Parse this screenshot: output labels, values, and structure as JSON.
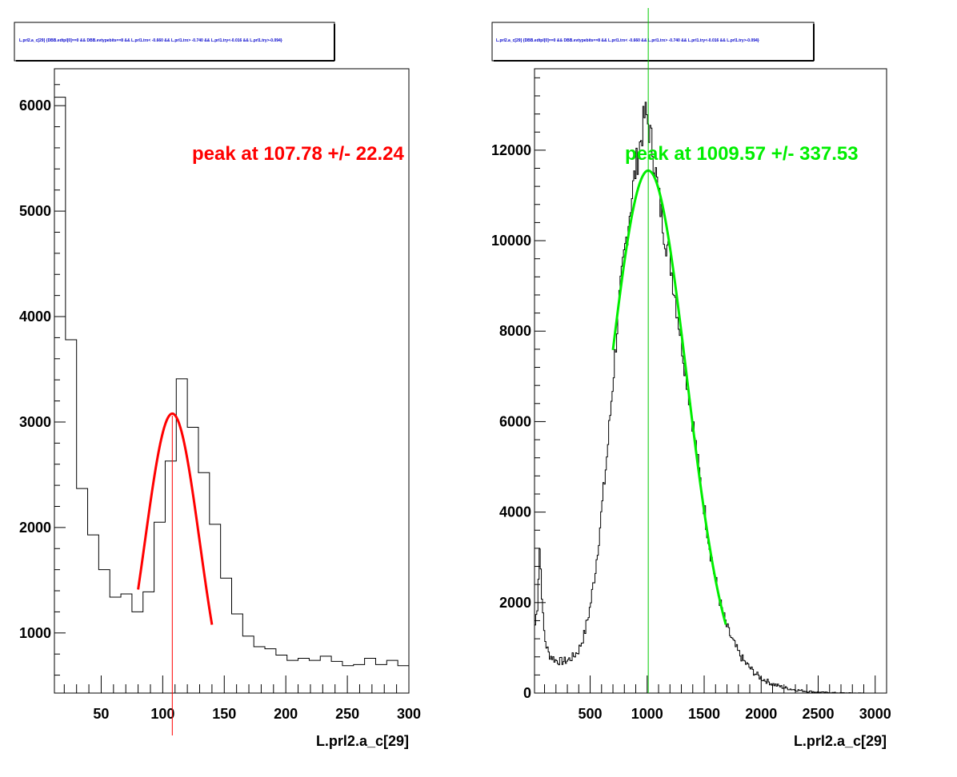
{
  "chart_data": [
    {
      "type": "histogram",
      "title": "L.prl2.a_c[29] {DBB.edtpl[0]==0 && DBB.evtypebits==8 &&  L.prl1.trx< -0.660 && L.prl1.trx> -0.740 && L.prl1.try<-0.016 && L.prl1.try>-0.094}",
      "xlabel": "L.prl2.a_c[29]",
      "ylabel": "",
      "xlim": [
        12,
        300
      ],
      "ylim": [
        430,
        6350
      ],
      "x_ticks": [
        50,
        100,
        150,
        200,
        250,
        300
      ],
      "y_ticks": [
        1000,
        2000,
        3000,
        4000,
        5000,
        6000
      ],
      "grid": false,
      "bin_edges": [
        12,
        21,
        30,
        39,
        48,
        57,
        66,
        75,
        84,
        93,
        102,
        111,
        120,
        129,
        138,
        147,
        156,
        165,
        174,
        183,
        192,
        201,
        210,
        219,
        228,
        237,
        246,
        255,
        264,
        273,
        282,
        291,
        300
      ],
      "counts": [
        6080,
        3780,
        2370,
        1930,
        1600,
        1340,
        1370,
        1200,
        1390,
        2050,
        2630,
        3410,
        2950,
        2520,
        2030,
        1520,
        1180,
        970,
        870,
        850,
        790,
        740,
        760,
        740,
        780,
        730,
        690,
        700,
        760,
        700,
        740,
        690
      ],
      "series": [
        {
          "name": "histogram",
          "color": "#000000"
        },
        {
          "name": "gaussian-fit",
          "color": "#ff0000",
          "fit_range": [
            80,
            140
          ],
          "amplitude": 3080,
          "mean": 107.78,
          "sigma": 22.24
        }
      ],
      "peak_marker": {
        "x": 107.78,
        "color": "#ff0000"
      },
      "annotation": {
        "text": "peak at 107.78 +/- 22.24",
        "color": "#ff0000"
      }
    },
    {
      "type": "histogram",
      "title": "L.prl2.a_c[29] {DBB.edtpl[0]==0 && DBB.evtypebits==8 &&  L.prl1.trx< -0.660 && L.prl1.trx> -0.740 && L.prl1.try<-0.016 && L.prl1.try>-0.094}",
      "xlabel": "L.prl2.a_c[29]",
      "ylabel": "",
      "xlim": [
        12,
        3100
      ],
      "ylim": [
        0,
        13800
      ],
      "x_ticks": [
        500,
        1000,
        1500,
        2000,
        2500,
        3000
      ],
      "y_ticks": [
        0,
        2000,
        4000,
        6000,
        8000,
        10000,
        12000
      ],
      "grid": false,
      "points": [
        [
          12,
          1400
        ],
        [
          40,
          2000
        ],
        [
          55,
          3300
        ],
        [
          70,
          2600
        ],
        [
          90,
          1500
        ],
        [
          110,
          1100
        ],
        [
          140,
          850
        ],
        [
          200,
          720
        ],
        [
          250,
          700
        ],
        [
          300,
          720
        ],
        [
          350,
          800
        ],
        [
          400,
          950
        ],
        [
          450,
          1300
        ],
        [
          500,
          1900
        ],
        [
          550,
          2800
        ],
        [
          600,
          4000
        ],
        [
          650,
          5300
        ],
        [
          700,
          6900
        ],
        [
          750,
          8500
        ],
        [
          800,
          9700
        ],
        [
          850,
          10700
        ],
        [
          900,
          11600
        ],
        [
          950,
          12300
        ],
        [
          980,
          12800
        ],
        [
          1000,
          12700
        ],
        [
          1050,
          12000
        ],
        [
          1100,
          11000
        ],
        [
          1150,
          10200
        ],
        [
          1200,
          9600
        ],
        [
          1250,
          8700
        ],
        [
          1300,
          7800
        ],
        [
          1350,
          6900
        ],
        [
          1400,
          6000
        ],
        [
          1450,
          5000
        ],
        [
          1500,
          4100
        ],
        [
          1550,
          3200
        ],
        [
          1600,
          2500
        ],
        [
          1650,
          1900
        ],
        [
          1700,
          1450
        ],
        [
          1750,
          1150
        ],
        [
          1800,
          900
        ],
        [
          1850,
          700
        ],
        [
          1900,
          560
        ],
        [
          1950,
          430
        ],
        [
          2000,
          330
        ],
        [
          2100,
          200
        ],
        [
          2200,
          120
        ],
        [
          2300,
          70
        ],
        [
          2400,
          40
        ],
        [
          2500,
          20
        ],
        [
          2600,
          10
        ],
        [
          2700,
          5
        ],
        [
          2800,
          2
        ],
        [
          3100,
          0
        ]
      ],
      "series": [
        {
          "name": "histogram",
          "color": "#000000"
        },
        {
          "name": "gaussian-fit",
          "color": "#00ee00",
          "fit_range": [
            700,
            1690
          ],
          "amplitude": 11550,
          "mean": 1009.57,
          "sigma": 337.53
        }
      ],
      "peak_marker": {
        "x": 1009.57,
        "color": "#00cc00"
      },
      "annotation": {
        "text": "peak at 1009.57 +/- 337.53",
        "color": "#00ee00"
      }
    }
  ]
}
